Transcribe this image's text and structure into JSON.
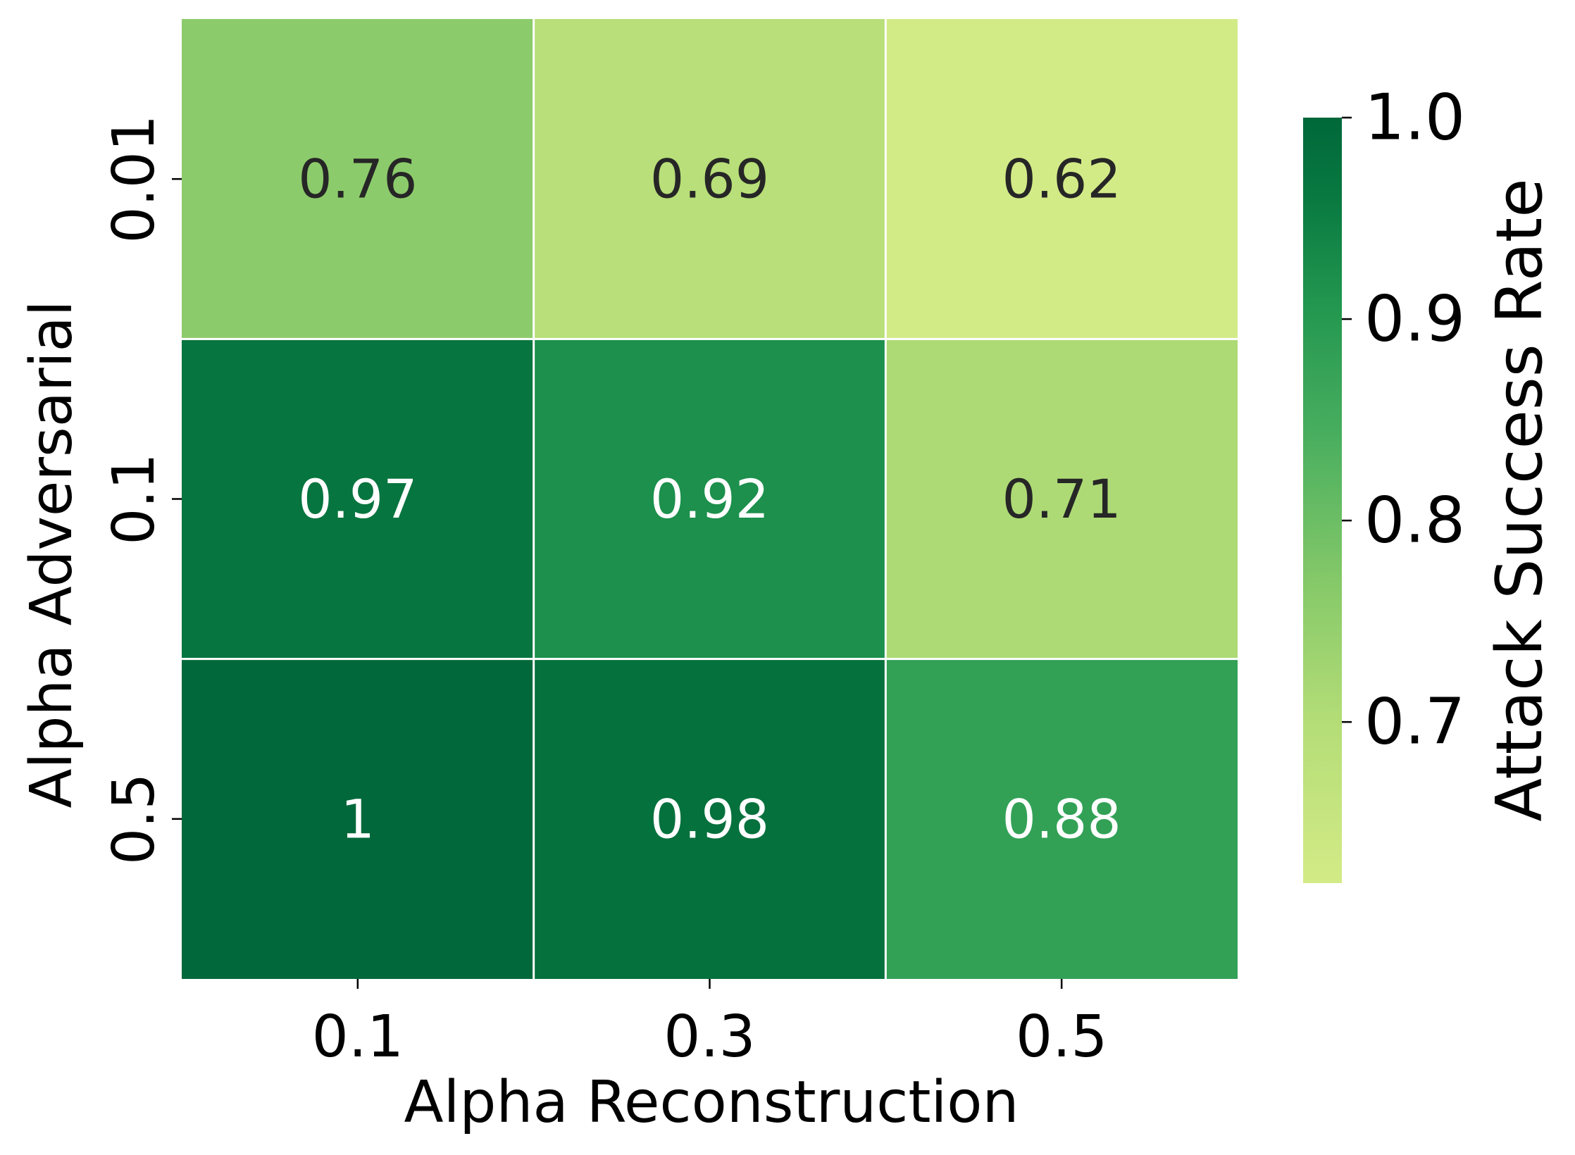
{
  "chart_data": {
    "type": "heatmap",
    "xlabel": "Alpha Reconstruction",
    "ylabel": "Alpha Adversarial",
    "x_categories": [
      "0.1",
      "0.3",
      "0.5"
    ],
    "y_categories": [
      "0.01",
      "0.1",
      "0.5"
    ],
    "values": [
      [
        0.76,
        0.69,
        0.62
      ],
      [
        0.97,
        0.92,
        0.71
      ],
      [
        1.0,
        0.98,
        0.88
      ]
    ],
    "cell_labels": [
      [
        "0.76",
        "0.69",
        "0.62"
      ],
      [
        "0.97",
        "0.92",
        "0.71"
      ],
      [
        "1",
        "0.98",
        "0.88"
      ]
    ],
    "colorbar": {
      "label": "Attack Success Rate",
      "range": [
        0.62,
        1.0
      ],
      "ticks": [
        0.7,
        0.8,
        0.9,
        1.0
      ],
      "tick_labels": [
        "0.7",
        "0.8",
        "0.9",
        "1.0"
      ],
      "colormap": "YlGn",
      "low_color": "#d3eb87",
      "high_color": "#00683a"
    },
    "grid": false,
    "legend": "colorbar-right"
  }
}
